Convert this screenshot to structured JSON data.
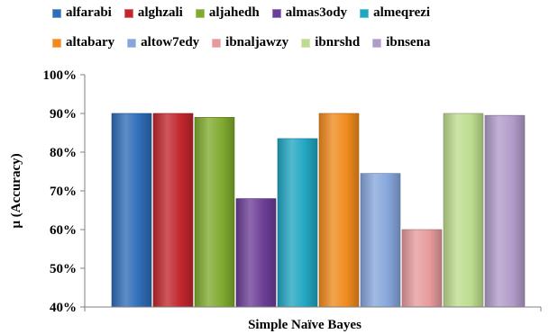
{
  "chart_data": {
    "type": "bar",
    "title": "",
    "xlabel": "Simple Naïve Bayes",
    "ylabel": "µ (Accuracy)",
    "categories": [
      "Simple Naïve Bayes"
    ],
    "series": [
      {
        "name": "alfarabi",
        "values": [
          90
        ],
        "color": "#2E6DB7"
      },
      {
        "name": "alghzali",
        "values": [
          90
        ],
        "color": "#C0272D"
      },
      {
        "name": "aljahedh",
        "values": [
          89
        ],
        "color": "#7FAA2E"
      },
      {
        "name": "almas3ody",
        "values": [
          68
        ],
        "color": "#6B3E97"
      },
      {
        "name": "almeqrezi",
        "values": [
          83.5
        ],
        "color": "#21A6C2"
      },
      {
        "name": "altabary",
        "values": [
          90
        ],
        "color": "#F08A1D"
      },
      {
        "name": "altow7edy",
        "values": [
          74.5
        ],
        "color": "#86A6DB"
      },
      {
        "name": "ibnaljawzy",
        "values": [
          60
        ],
        "color": "#E79A9C"
      },
      {
        "name": "ibnrshd",
        "values": [
          90
        ],
        "color": "#BDDC8F"
      },
      {
        "name": "ibnsena",
        "values": [
          89.5
        ],
        "color": "#B19CC9"
      }
    ],
    "ylim": [
      40,
      100
    ],
    "yticks": [
      "40%",
      "50%",
      "60%",
      "70%",
      "80%",
      "90%",
      "100%"
    ],
    "grid": false,
    "legend_position": "top"
  }
}
